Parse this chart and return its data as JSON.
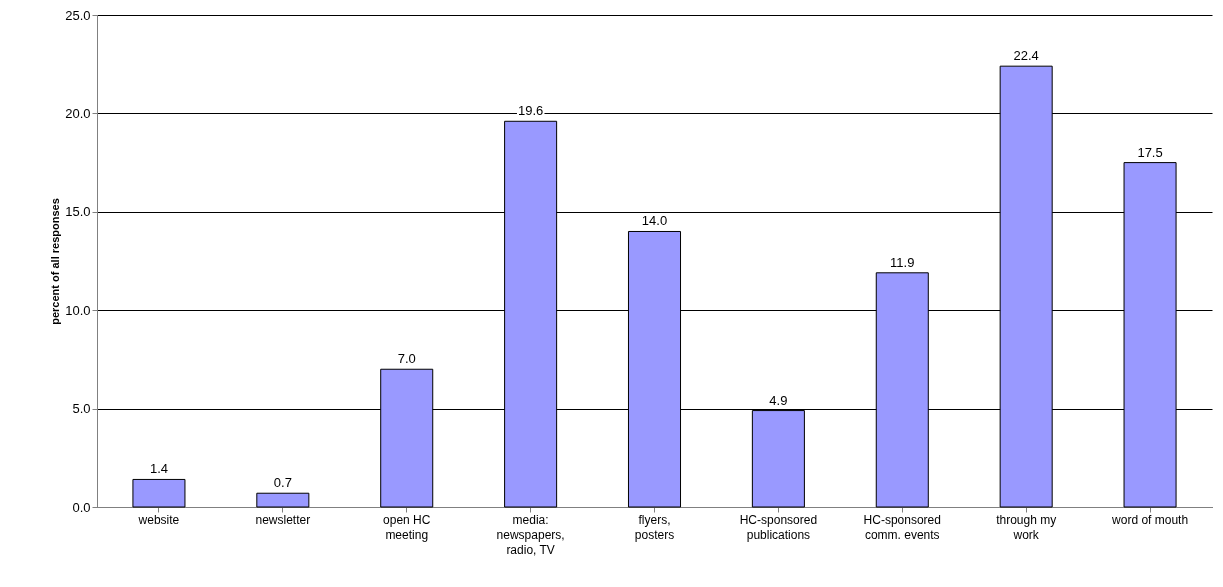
{
  "chart_data": {
    "type": "bar",
    "ylabel": "percent of all responses",
    "categories": [
      "website",
      "newsletter",
      "open HC meeting",
      "media: newspapers, radio, TV",
      "flyers, posters",
      "HC-sponsored publications",
      "HC-sponsored comm. events",
      "through my work",
      "word of mouth"
    ],
    "values": [
      1.4,
      0.7,
      7.0,
      19.6,
      14.0,
      4.9,
      11.9,
      22.4,
      17.5
    ],
    "color": "#9999ff",
    "ylim": [
      0,
      25
    ],
    "yticks": [
      {
        "value": 0,
        "label": "0.0"
      },
      {
        "value": 5,
        "label": "5.0"
      },
      {
        "value": 10,
        "label": "10.0"
      },
      {
        "value": 15,
        "label": "15.0"
      },
      {
        "value": 20,
        "label": "20.0"
      },
      {
        "value": 25,
        "label": "25.0"
      }
    ],
    "value_labels": [
      "1.4",
      "0.7",
      "7.0",
      "19.6",
      "14.0",
      "4.9",
      "11.9",
      "22.4",
      "17.5"
    ],
    "grid": "y"
  }
}
